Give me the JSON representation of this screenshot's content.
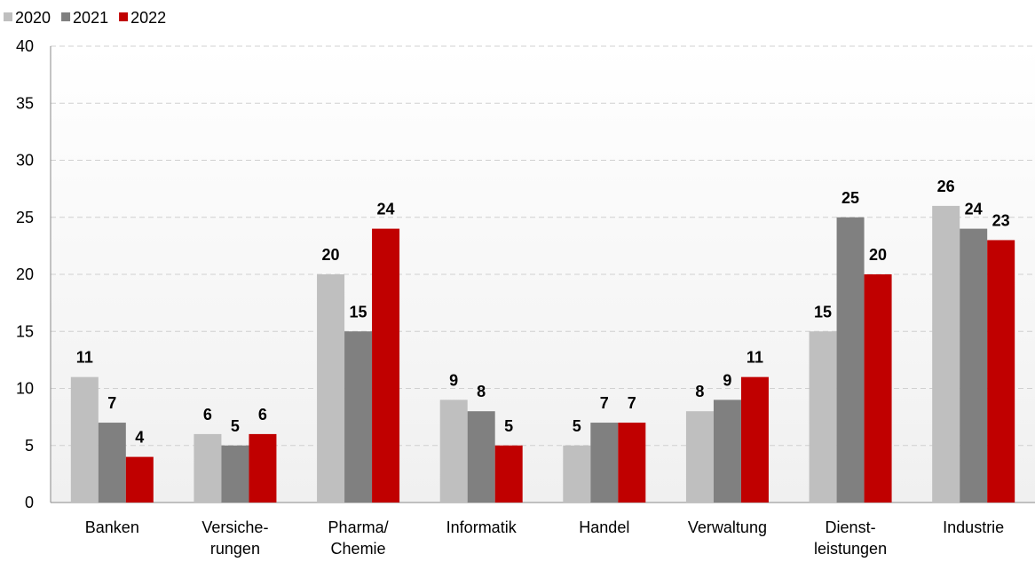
{
  "chart_data": {
    "type": "bar",
    "categories": [
      "Banken",
      "Versiche-\nrungen",
      "Pharma/\nChemie",
      "Informatik",
      "Handel",
      "Verwaltung",
      "Dienst-\nleistungen",
      "Industrie"
    ],
    "series": [
      {
        "name": "2020",
        "color": "#bfbfbf",
        "values": [
          11,
          6,
          20,
          9,
          5,
          8,
          15,
          26
        ]
      },
      {
        "name": "2021",
        "color": "#808080",
        "values": [
          7,
          5,
          15,
          8,
          7,
          9,
          25,
          24
        ]
      },
      {
        "name": "2022",
        "color": "#c00000",
        "values": [
          4,
          6,
          24,
          5,
          7,
          11,
          20,
          23
        ]
      }
    ],
    "ylim": [
      0,
      40
    ],
    "yticks": [
      0,
      5,
      10,
      15,
      20,
      25,
      30,
      35,
      40
    ],
    "grid": true,
    "legend": "top-left"
  }
}
